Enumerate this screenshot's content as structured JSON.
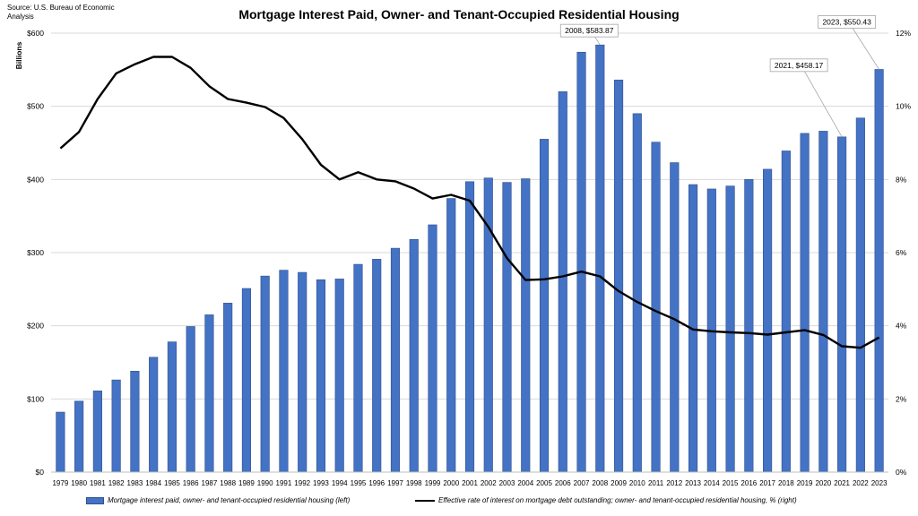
{
  "source": "Source: U.S. Bureau of Economic Analysis",
  "chart_data": {
    "type": "bar",
    "title": "Mortgage Interest Paid, Owner- and Tenant-Occupied Residential Housing",
    "ylabel": "Billions",
    "ylim": [
      0,
      600
    ],
    "y2lim": [
      0,
      12
    ],
    "yticks": [
      "$0",
      "$100",
      "$200",
      "$300",
      "$400",
      "$500",
      "$600"
    ],
    "y2ticks": [
      "0%",
      "2%",
      "4%",
      "6%",
      "8%",
      "10%",
      "12%"
    ],
    "categories": [
      "1979",
      "1980",
      "1981",
      "1982",
      "1983",
      "1984",
      "1985",
      "1986",
      "1987",
      "1988",
      "1989",
      "1990",
      "1991",
      "1992",
      "1993",
      "1994",
      "1995",
      "1996",
      "1997",
      "1998",
      "1999",
      "2000",
      "2001",
      "2002",
      "2003",
      "2004",
      "2005",
      "2006",
      "2007",
      "2008",
      "2009",
      "2010",
      "2011",
      "2012",
      "2013",
      "2014",
      "2015",
      "2016",
      "2017",
      "2018",
      "2019",
      "2020",
      "2021",
      "2022",
      "2023"
    ],
    "series": [
      {
        "name": "Mortgage interest paid, owner- and tenant-occupied residential housing (left)",
        "type": "bar",
        "axis": "left",
        "color": "#4472C4",
        "values": [
          82,
          97,
          111,
          126,
          138,
          157,
          178,
          199,
          215,
          231,
          251,
          268,
          276,
          273,
          263,
          264,
          284,
          291,
          306,
          318,
          338,
          374,
          397,
          402,
          396,
          401,
          455,
          520,
          574,
          583.87,
          536,
          490,
          451,
          423,
          393,
          387,
          391,
          400,
          414,
          439,
          463,
          466,
          458.17,
          484,
          550.43
        ]
      },
      {
        "name": "Effective rate of interest on mortgage debt outstanding; owner- and tenant-occupied residential housing, % (right)",
        "type": "line",
        "axis": "right",
        "color": "#000000",
        "values": [
          8.85,
          9.3,
          10.2,
          10.9,
          11.15,
          11.35,
          11.35,
          11.05,
          10.55,
          10.2,
          10.1,
          9.98,
          9.68,
          9.1,
          8.4,
          8.0,
          8.2,
          8.0,
          7.95,
          7.75,
          7.48,
          7.58,
          7.42,
          6.7,
          5.85,
          5.25,
          5.27,
          5.35,
          5.48,
          5.35,
          4.95,
          4.65,
          4.4,
          4.18,
          3.9,
          3.85,
          3.82,
          3.8,
          3.76,
          3.82,
          3.88,
          3.75,
          3.44,
          3.4,
          3.68
        ]
      }
    ],
    "annotations": [
      {
        "text": "2008, $583.87",
        "category": "2008"
      },
      {
        "text": "2021, $458.17",
        "category": "2021"
      },
      {
        "text": "2023, $550.43",
        "category": "2023"
      }
    ],
    "grid": true,
    "legend_position": "bottom"
  }
}
